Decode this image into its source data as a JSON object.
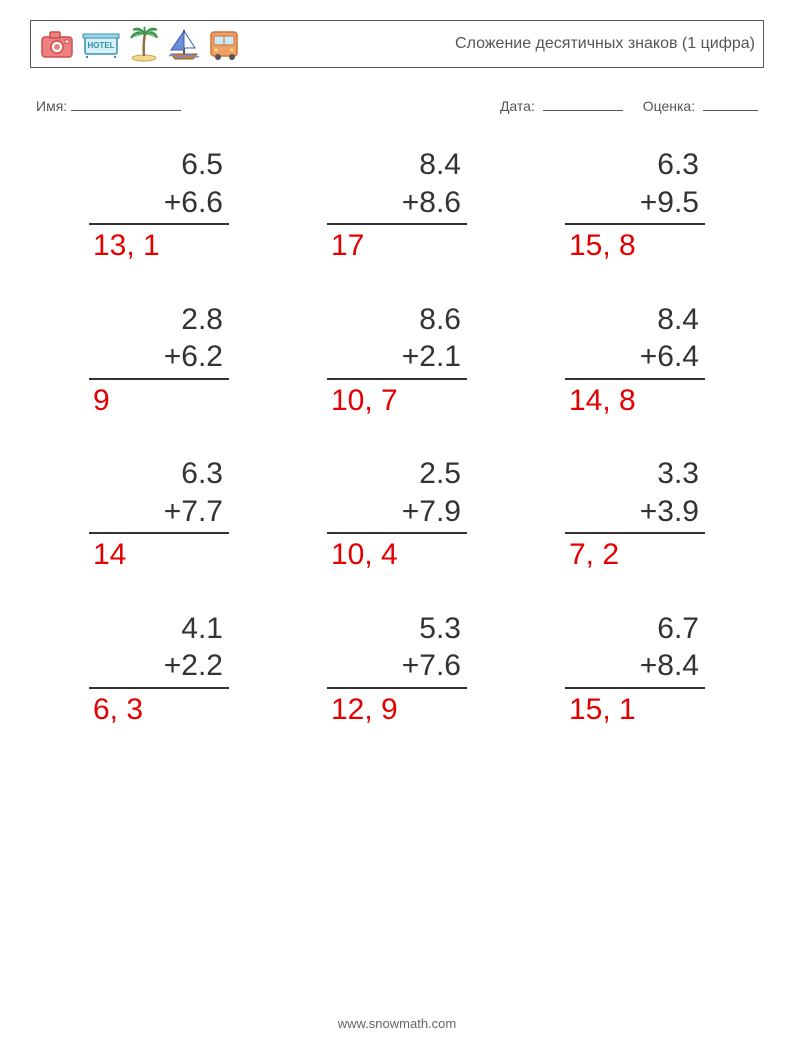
{
  "header": {
    "title": "Сложение десятичных знаков (1 цифра)",
    "icons": [
      {
        "name": "camera-icon",
        "fill": "#f08080",
        "stroke": "#c94f4f",
        "shape": "camera"
      },
      {
        "name": "hotel-icon",
        "fill": "#9fd8e8",
        "stroke": "#3a8fa8",
        "shape": "hotel"
      },
      {
        "name": "palm-icon",
        "fill": "#6bc47a",
        "stroke": "#3f8f4f",
        "shape": "palm"
      },
      {
        "name": "sail-icon",
        "fill": "#6a8fd8",
        "stroke": "#3a5fa8",
        "shape": "sail"
      },
      {
        "name": "bus-icon",
        "fill": "#f0a060",
        "stroke": "#c9743f",
        "shape": "bus"
      }
    ]
  },
  "info": {
    "name_label": "Имя:",
    "date_label": "Дата:",
    "score_label": "Оценка:"
  },
  "styles": {
    "operand_color": "#333333",
    "answer_color": "#e40000",
    "font_size_problem": 30,
    "font_family": "Arial",
    "rule_color": "#333333",
    "page_bg": "#ffffff",
    "grid_cols": 3,
    "grid_rows": 4,
    "problem_width": 140
  },
  "problems": [
    {
      "a": "6.5",
      "b": "+6.6",
      "ans": "13, 1"
    },
    {
      "a": "8.4",
      "b": "+8.6",
      "ans": "17"
    },
    {
      "a": "6.3",
      "b": "+9.5",
      "ans": "15, 8"
    },
    {
      "a": "2.8",
      "b": "+6.2",
      "ans": "9"
    },
    {
      "a": "8.6",
      "b": "+2.1",
      "ans": "10, 7"
    },
    {
      "a": "8.4",
      "b": "+6.4",
      "ans": "14, 8"
    },
    {
      "a": "6.3",
      "b": "+7.7",
      "ans": "14"
    },
    {
      "a": "2.5",
      "b": "+7.9",
      "ans": "10, 4"
    },
    {
      "a": "3.3",
      "b": "+3.9",
      "ans": "7, 2"
    },
    {
      "a": "4.1",
      "b": "+2.2",
      "ans": "6, 3"
    },
    {
      "a": "5.3",
      "b": "+7.6",
      "ans": "12, 9"
    },
    {
      "a": "6.7",
      "b": "+8.4",
      "ans": "15, 1"
    }
  ],
  "footer": {
    "text": "www.snowmath.com"
  }
}
